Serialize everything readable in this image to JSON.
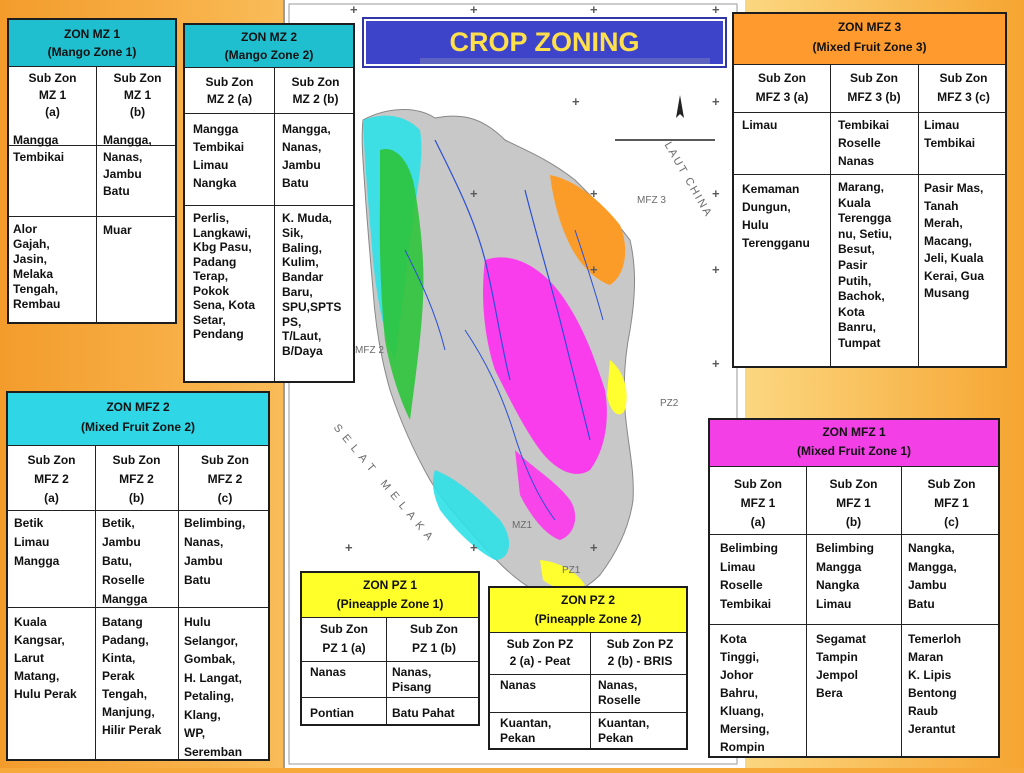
{
  "title": "CROP ZONING",
  "map_labels": {
    "laut_china": "LAUT CHINA",
    "selat_melaka": "SELAT MELAKA",
    "mfz3": "MFZ 3",
    "mfz2": "MFZ 2",
    "pz2": "PZ2",
    "mz1": "MZ1",
    "pz1": "PZ1"
  },
  "zones": {
    "mz1": {
      "title": "ZON MZ 1",
      "subtitle": "(Mango Zone 1)",
      "subs": [
        {
          "l1": "Sub Zon",
          "l2": "MZ 1",
          "l3": "(a)"
        },
        {
          "l1": "Sub Zon",
          "l2": "MZ 1",
          "l3": "(b)"
        }
      ],
      "crops": [
        "Mangga\nTembikai",
        "Mangga,\nNanas,\nJambu\nBatu"
      ],
      "areas": [
        "Alor\nGajah,\nJasin,\nMelaka\nTengah,\nRembau",
        "Muar"
      ]
    },
    "mz2": {
      "title": "ZON MZ 2",
      "subtitle": "(Mango Zone 2)",
      "subs": [
        {
          "l1": "Sub Zon",
          "l2": "MZ 2 (a)"
        },
        {
          "l1": "Sub Zon",
          "l2": "MZ 2  (b)"
        }
      ],
      "crops": [
        "Mangga\nTembikai\nLimau\nNangka",
        "Mangga,\nNanas,\nJambu\nBatu"
      ],
      "areas": [
        "Perlis,\nLangkawi,\nKbg Pasu,\nPadang\nTerap,\nPokok\nSena, Kota\nSetar,\nPendang",
        "K. Muda,\nSik,\nBaling,\nKulim,\nBandar\nBaru,\nSPU,SPTS\nPS,\nT/Laut,\nB/Daya"
      ]
    },
    "mfz3": {
      "title": "ZON MFZ 3",
      "subtitle": "(Mixed Fruit Zone 3)",
      "subs": [
        {
          "l1": "Sub Zon",
          "l2": "MFZ 3 (a)"
        },
        {
          "l1": "Sub Zon",
          "l2": "MFZ 3 (b)"
        },
        {
          "l1": "Sub Zon",
          "l2": "MFZ 3 (c)"
        }
      ],
      "crops": [
        "Limau",
        "Tembikai\nRoselle\nNanas",
        "Limau\nTembikai"
      ],
      "areas": [
        "Kemaman\nDungun,\nHulu\nTerengganu",
        "Marang,\nKuala\nTerengga\nnu, Setiu,\nBesut,\nPasir\nPutih,\nBachok,\nKota\nBanru,\nTumpat",
        "Pasir Mas,\nTanah\nMerah,\nMacang,\nJeli, Kuala\nKerai, Gua\nMusang"
      ]
    },
    "mfz2": {
      "title": "ZON MFZ 2",
      "subtitle": "(Mixed Fruit Zone 2)",
      "subs": [
        {
          "l1": "Sub Zon",
          "l2": "MFZ 2",
          "l3": "(a)"
        },
        {
          "l1": "Sub Zon",
          "l2": "MFZ 2",
          "l3": "(b)"
        },
        {
          "l1": "Sub Zon",
          "l2": "MFZ 2",
          "l3": "(c)"
        }
      ],
      "crops": [
        "Betik\nLimau\nMangga",
        "Betik,\nJambu\nBatu,\nRoselle\nMangga",
        "Belimbing,\nNanas,\nJambu\nBatu"
      ],
      "areas": [
        "Kuala\nKangsar,\nLarut\nMatang,\nHulu Perak",
        "Batang\nPadang,\nKinta,\nPerak\nTengah,\nManjung,\nHilir Perak",
        "Hulu\nSelangor,\nGombak,\nH. Langat,\nPetaling,\nKlang,\nWP,\nSeremban"
      ]
    },
    "mfz1": {
      "title": "ZON MFZ 1",
      "subtitle": "(Mixed Fruit Zone 1)",
      "subs": [
        {
          "l1": "Sub Zon",
          "l2": "MFZ 1",
          "l3": "(a)"
        },
        {
          "l1": "Sub Zon",
          "l2": "MFZ 1",
          "l3": "(b)"
        },
        {
          "l1": "Sub Zon",
          "l2": "MFZ 1",
          "l3": "(c)"
        }
      ],
      "crops": [
        "Belimbing\nLimau\nRoselle\nTembikai",
        "Belimbing\nMangga\nNangka\nLimau",
        "Nangka,\nMangga,\nJambu\nBatu"
      ],
      "areas": [
        "Kota\nTinggi,\nJohor\nBahru,\nKluang,\nMersing,\nRompin",
        "Segamat\nTampin\nJempol\nBera",
        "Temerloh\nMaran\nK. Lipis\nBentong\nRaub\nJerantut"
      ]
    },
    "pz1": {
      "title": "ZON PZ 1",
      "subtitle": "(Pineapple Zone 1)",
      "subs": [
        {
          "l1": "Sub Zon",
          "l2": "PZ 1 (a)"
        },
        {
          "l1": "Sub Zon",
          "l2": "PZ 1 (b)"
        }
      ],
      "crops": [
        "Nanas",
        "Nanas,\nPisang"
      ],
      "areas": [
        "Pontian",
        "Batu Pahat"
      ]
    },
    "pz2": {
      "title": "ZON PZ 2",
      "subtitle": "(Pineapple Zone 2)",
      "subs": [
        {
          "l1": "Sub Zon PZ",
          "l2": "2 (a) - Peat"
        },
        {
          "l1": "Sub Zon PZ",
          "l2": "2 (b) - BRIS"
        }
      ],
      "crops": [
        "Nanas",
        "Nanas,\nRoselle"
      ],
      "areas": [
        "Kuantan,\nPekan",
        "Kuantan,\nPekan"
      ]
    }
  },
  "colors": {
    "mz_header": "#1fbfd0",
    "mfz3_header": "#ff9a2e",
    "mfz2_header": "#2fd7e6",
    "mfz1_header": "#f23fe6",
    "pz_header": "#ffff2a",
    "title_bg": "#3d44c9",
    "title_text": "#ffe04a"
  }
}
